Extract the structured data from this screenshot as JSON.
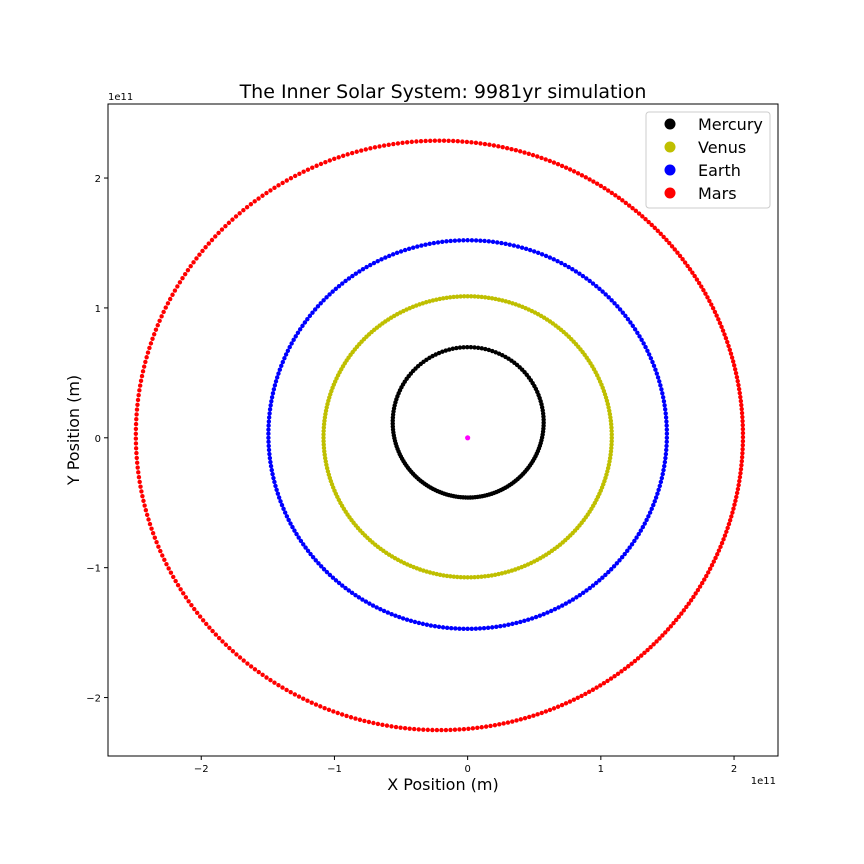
{
  "chart_data": {
    "type": "scatter",
    "title": "The Inner Solar System: 9981yr simulation",
    "xlabel": "X Position (m)",
    "ylabel": "Y Position (m)",
    "x_offset_label": "1e11",
    "y_offset_label": "1e11",
    "xlim": [
      -270000000000.0,
      233000000000.0
    ],
    "ylim": [
      -245000000000.0,
      257000000000.0
    ],
    "x_ticks": [
      {
        "value": -200000000000.0,
        "label": "−2"
      },
      {
        "value": -100000000000.0,
        "label": "−1"
      },
      {
        "value": 0,
        "label": "0"
      },
      {
        "value": 100000000000.0,
        "label": "1"
      },
      {
        "value": 200000000000.0,
        "label": "2"
      }
    ],
    "y_ticks": [
      {
        "value": -200000000000.0,
        "label": "−2"
      },
      {
        "value": -100000000000.0,
        "label": "−1"
      },
      {
        "value": 0,
        "label": "0"
      },
      {
        "value": 100000000000.0,
        "label": "1"
      },
      {
        "value": 200000000000.0,
        "label": "2"
      }
    ],
    "grid": false,
    "legend_position": "top-right",
    "sun": {
      "x": 0,
      "y": 0,
      "color": "#ff00ff"
    },
    "series": [
      {
        "name": "Mercury",
        "color": "#000000",
        "a": 57900000000.0,
        "e": 0.2056,
        "omega_deg": 268,
        "points": 160
      },
      {
        "name": "Venus",
        "color": "#bfbf00",
        "a": 108200000000.0,
        "e": 0.0068,
        "omega_deg": 270,
        "points": 260
      },
      {
        "name": "Earth",
        "color": "#0000ff",
        "a": 149600000000.0,
        "e": 0.0167,
        "omega_deg": 270,
        "points": 300
      },
      {
        "name": "Mars",
        "color": "#ff0000",
        "a": 227900000000.0,
        "e": 0.0934,
        "omega_deg": 355,
        "points": 420
      }
    ]
  }
}
